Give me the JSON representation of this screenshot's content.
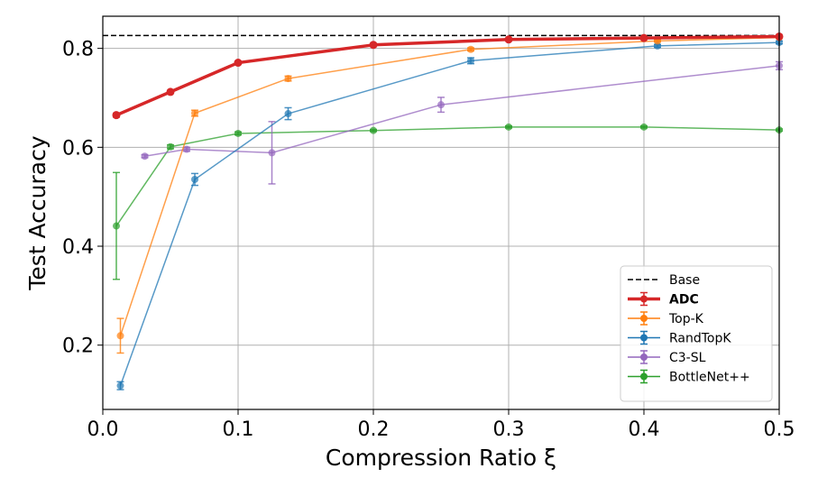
{
  "chart_data": {
    "type": "line",
    "title": "",
    "xlabel": "Compression Ratio ξ",
    "ylabel": "Test Accuracy",
    "xlim": [
      0.0,
      0.5
    ],
    "ylim": [
      0.07,
      0.865
    ],
    "grid": true,
    "legend_position": "lower-right",
    "x_ticks": [
      0.0,
      0.1,
      0.2,
      0.3,
      0.4,
      0.5
    ],
    "x_tick_labels": [
      "0.0",
      "0.1",
      "0.2",
      "0.3",
      "0.4",
      "0.5"
    ],
    "y_ticks": [
      0.2,
      0.4,
      0.6,
      0.8
    ],
    "y_tick_labels": [
      "0.2",
      "0.4",
      "0.6",
      "0.8"
    ],
    "baseline": {
      "name": "Base",
      "value": 0.826,
      "color": "#000000",
      "style": "dashed"
    },
    "series": [
      {
        "name": "ADC",
        "color": "#d62728",
        "bold": true,
        "x": [
          0.01,
          0.05,
          0.1,
          0.2,
          0.3,
          0.4,
          0.5
        ],
        "values": [
          0.665,
          0.712,
          0.771,
          0.807,
          0.818,
          0.821,
          0.824
        ],
        "errors": [
          0.004,
          0.003,
          0.003,
          0.003,
          0.002,
          0.002,
          0.002
        ]
      },
      {
        "name": "Top-K",
        "color": "#ff7f0e",
        "bold": false,
        "x": [
          0.013,
          0.068,
          0.137,
          0.272,
          0.41,
          0.5
        ],
        "values": [
          0.219,
          0.669,
          0.739,
          0.798,
          0.815,
          0.822
        ],
        "errors": [
          0.035,
          0.006,
          0.005,
          0.003,
          0.002,
          0.002
        ]
      },
      {
        "name": "RandTopK",
        "color": "#1f77b4",
        "bold": false,
        "x": [
          0.013,
          0.068,
          0.137,
          0.272,
          0.41,
          0.5
        ],
        "values": [
          0.118,
          0.535,
          0.668,
          0.775,
          0.805,
          0.812
        ],
        "errors": [
          0.008,
          0.012,
          0.012,
          0.006,
          0.003,
          0.003
        ]
      },
      {
        "name": "C3-SL",
        "color": "#9467bd",
        "bold": false,
        "x": [
          0.031,
          0.062,
          0.125,
          0.25,
          0.5
        ],
        "values": [
          0.582,
          0.596,
          0.589,
          0.686,
          0.765
        ],
        "errors": [
          0.003,
          0.004,
          0.063,
          0.015,
          0.008
        ]
      },
      {
        "name": "BottleNet++",
        "color": "#2ca02c",
        "bold": false,
        "x": [
          0.01,
          0.05,
          0.1,
          0.2,
          0.3,
          0.4,
          0.5
        ],
        "values": [
          0.441,
          0.601,
          0.628,
          0.634,
          0.641,
          0.641,
          0.635
        ],
        "errors": [
          0.108,
          0.004,
          0.003,
          0.002,
          0.002,
          0.002,
          0.002
        ]
      }
    ]
  }
}
